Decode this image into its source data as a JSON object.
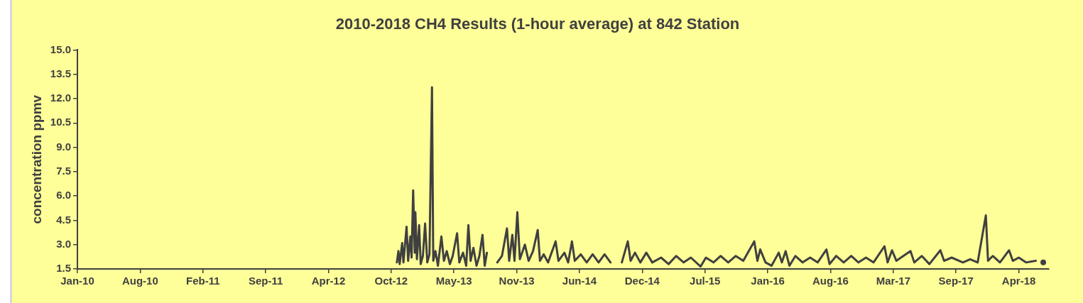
{
  "chart_data": {
    "type": "line",
    "title": "2010-2018 CH4 Results (1-hour average) at 842 Station",
    "ylabel": "concentration ppmv",
    "series": [
      {
        "color": "#404040",
        "x": [
          "2012-11-05",
          "2012-11-10",
          "2012-11-14",
          "2012-11-22",
          "2012-11-26",
          "2012-12-06",
          "2012-12-11",
          "2012-12-18",
          "2012-12-22",
          "2012-12-27",
          "2013-01-01",
          "2013-01-03",
          "2013-01-08",
          "2013-01-15",
          "2013-01-20",
          "2013-01-27",
          "2013-02-03",
          "2013-02-10",
          "2013-02-17",
          "2013-02-25",
          "2013-03-01",
          "2013-03-08",
          "2013-03-16",
          "2013-03-27",
          "2013-04-04",
          "2013-04-13",
          "2013-04-23",
          "2013-05-02",
          "2013-05-16",
          "2013-05-23",
          "2013-06-04",
          "2013-06-14",
          "2013-06-21",
          "2013-06-28",
          "2013-07-07",
          "2013-07-17",
          "2013-07-26",
          "2013-08-05",
          "2013-08-12",
          "2013-08-19",
          "2013-09-05",
          "2013-09-21",
          "2013-10-06",
          "2013-10-22",
          "2013-10-29",
          "2013-11-08",
          "2013-11-15",
          "2013-11-24",
          "2013-12-02",
          "2013-12-18",
          "2013-12-30",
          "2014-01-13",
          "2014-01-28",
          "2014-02-04",
          "2014-02-16",
          "2014-03-02",
          "2014-03-26",
          "2014-04-04",
          "2014-04-23",
          "2014-05-05",
          "2014-05-17",
          "2014-05-26",
          "2014-06-14",
          "2014-07-03",
          "2014-07-22",
          "2014-08-10",
          "2014-08-29",
          "2014-09-17",
          "2014-10-06",
          "2014-10-23",
          "2014-11-11",
          "2014-11-20",
          "2014-12-04",
          "2014-12-21",
          "2015-01-09",
          "2015-01-28",
          "2015-02-25",
          "2015-03-21",
          "2015-04-14",
          "2015-05-08",
          "2015-05-31",
          "2015-07-01",
          "2015-07-18",
          "2015-08-11",
          "2015-09-03",
          "2015-09-27",
          "2015-10-21",
          "2015-11-14",
          "2015-12-19",
          "2015-12-29",
          "2016-01-07",
          "2016-01-24",
          "2016-02-12",
          "2016-03-06",
          "2016-03-16",
          "2016-03-28",
          "2016-04-09",
          "2016-04-28",
          "2016-05-21",
          "2016-06-14",
          "2016-07-08",
          "2016-08-05",
          "2016-08-15",
          "2016-09-05",
          "2016-09-29",
          "2016-10-23",
          "2016-11-15",
          "2016-12-09",
          "2017-01-02",
          "2017-02-06",
          "2017-02-16",
          "2017-03-02",
          "2017-03-16",
          "2017-04-07",
          "2017-04-30",
          "2017-05-12",
          "2017-06-05",
          "2017-06-29",
          "2017-08-03",
          "2017-08-15",
          "2017-09-08",
          "2017-10-14",
          "2017-11-06",
          "2017-11-30",
          "2017-12-26",
          "2018-01-02",
          "2018-01-17",
          "2018-02-09",
          "2018-03-10",
          "2018-03-22",
          "2018-04-10",
          "2018-05-03",
          "2018-06-03",
          "2018-06-15",
          "2018-06-27"
        ],
        "values": [
          1.9,
          2.6,
          1.8,
          3.1,
          1.9,
          4.1,
          2.0,
          3.5,
          2.2,
          6.35,
          2.5,
          5.0,
          2.1,
          4.2,
          1.8,
          2.3,
          4.3,
          1.9,
          2.4,
          12.7,
          2.0,
          2.6,
          1.7,
          3.5,
          2.0,
          2.6,
          1.8,
          2.3,
          3.7,
          1.9,
          2.5,
          1.7,
          4.2,
          2.0,
          2.8,
          1.7,
          2.3,
          3.6,
          1.7,
          2.5,
          null,
          1.9,
          2.3,
          4.0,
          2.0,
          3.6,
          2.0,
          5.0,
          2.1,
          3.0,
          2.0,
          2.6,
          3.9,
          2.0,
          2.4,
          1.9,
          3.2,
          2.0,
          2.5,
          1.9,
          3.2,
          2.0,
          2.4,
          1.9,
          2.4,
          1.9,
          2.4,
          1.9,
          null,
          1.9,
          3.2,
          2.0,
          2.5,
          1.9,
          2.5,
          1.9,
          2.2,
          1.8,
          2.3,
          1.9,
          2.2,
          1.65,
          2.2,
          1.9,
          2.3,
          1.9,
          2.3,
          2.0,
          3.2,
          2.0,
          2.7,
          1.9,
          1.7,
          2.5,
          1.9,
          2.6,
          1.7,
          2.3,
          1.9,
          2.2,
          1.9,
          2.7,
          1.8,
          2.3,
          1.9,
          2.3,
          1.9,
          2.2,
          1.9,
          2.9,
          1.9,
          2.65,
          2.0,
          2.3,
          2.6,
          1.9,
          2.3,
          1.8,
          2.65,
          2.0,
          2.2,
          1.9,
          2.1,
          1.9,
          4.8,
          2.0,
          2.3,
          1.9,
          2.65,
          2.0,
          2.2,
          1.9,
          2.0,
          null,
          1.9
        ]
      }
    ],
    "xlim": [
      "2010-01-22",
      "2018-07-15"
    ],
    "xticks": [
      {
        "value": "2010-01-22",
        "label": "Jan-10"
      },
      {
        "value": "2010-08-10",
        "label": "Aug-10"
      },
      {
        "value": "2011-02-26",
        "label": "Feb-11"
      },
      {
        "value": "2011-09-14",
        "label": "Sep-11"
      },
      {
        "value": "2012-04-01",
        "label": "Apr-12"
      },
      {
        "value": "2012-10-18",
        "label": "Oct-12"
      },
      {
        "value": "2013-05-06",
        "label": "May-13"
      },
      {
        "value": "2013-11-22",
        "label": "Nov-13"
      },
      {
        "value": "2014-06-10",
        "label": "Jun-14"
      },
      {
        "value": "2014-12-27",
        "label": "Dec-14"
      },
      {
        "value": "2015-07-15",
        "label": "Jul-15"
      },
      {
        "value": "2016-01-31",
        "label": "Jan-16"
      },
      {
        "value": "2016-08-18",
        "label": "Aug-16"
      },
      {
        "value": "2017-03-06",
        "label": "Mar-17"
      },
      {
        "value": "2017-09-22",
        "label": "Sep-17"
      },
      {
        "value": "2018-04-10",
        "label": "Apr-18"
      }
    ],
    "ylim": [
      1.5,
      15.0
    ],
    "yticks": [
      {
        "value": 1.5,
        "label": "1.5"
      },
      {
        "value": 3,
        "label": "3.0"
      },
      {
        "value": 4.5,
        "label": "4.5"
      },
      {
        "value": 6,
        "label": "6.0"
      },
      {
        "value": 7.5,
        "label": "7.5"
      },
      {
        "value": 9,
        "label": "9.0"
      },
      {
        "value": 10.5,
        "label": "10.5"
      },
      {
        "value": 12,
        "label": "12.0"
      },
      {
        "value": 13.5,
        "label": "13.5"
      },
      {
        "value": 15,
        "label": "15.0"
      }
    ],
    "grid": false,
    "legend": false,
    "marker": "none",
    "line_style": "solid"
  }
}
